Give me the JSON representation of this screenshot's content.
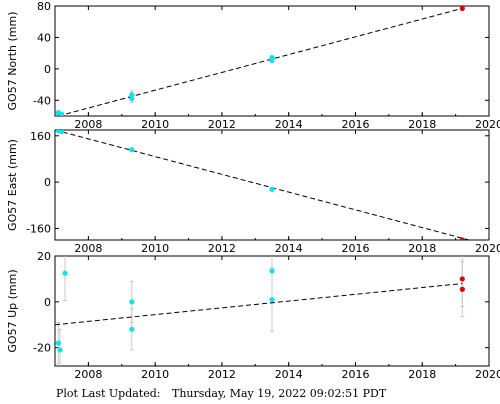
{
  "footer": {
    "label": "Plot Last Updated:",
    "timestamp": "Thursday, May 19, 2022 09:02:51 PDT"
  },
  "colors": {
    "point": "#00e5ee",
    "latest_point": "#e00000",
    "fit_line": "#000000",
    "error_bar": "#c8c8c8"
  },
  "chart_data": [
    {
      "type": "scatter",
      "id": "north",
      "ylabel": "GO57 North (mm)",
      "xlim": [
        2007,
        2020
      ],
      "ylim": [
        -60,
        80
      ],
      "xticks": [
        "2008",
        "2010",
        "2012",
        "2014",
        "2016",
        "2018",
        "2020"
      ],
      "yticks": [
        "-40",
        "0",
        "40",
        "80"
      ],
      "ytick_values": [
        -40,
        0,
        40,
        80
      ],
      "trend": [
        [
          2007.1,
          -60
        ],
        [
          2019.2,
          77
        ]
      ],
      "points": [
        {
          "x": 2007.1,
          "y": -56,
          "err": 3
        },
        {
          "x": 2007.2,
          "y": -58,
          "err": 3
        },
        {
          "x": 2009.3,
          "y": -33,
          "err": 5
        },
        {
          "x": 2009.3,
          "y": -38,
          "err": 5
        },
        {
          "x": 2013.5,
          "y": 14,
          "err": 3
        },
        {
          "x": 2013.5,
          "y": 11,
          "err": 3
        },
        {
          "x": 2019.2,
          "y": 77,
          "err": 2,
          "latest": true
        }
      ]
    },
    {
      "type": "scatter",
      "id": "east",
      "ylabel": "GO57 East (mm)",
      "xlim": [
        2007,
        2020
      ],
      "ylim": [
        -200,
        180
      ],
      "xticks": [
        "2008",
        "2010",
        "2012",
        "2014",
        "2016",
        "2018",
        "2020"
      ],
      "yticks": [
        "-160",
        "0",
        "160"
      ],
      "ytick_values": [
        -160,
        0,
        160
      ],
      "trend": [
        [
          2007,
          180
        ],
        [
          2019.4,
          -200
        ]
      ],
      "points": [
        {
          "x": 2007.1,
          "y": 178,
          "err": 3
        },
        {
          "x": 2007.2,
          "y": 175,
          "err": 3
        },
        {
          "x": 2009.3,
          "y": 112,
          "err": 4
        },
        {
          "x": 2013.5,
          "y": -25,
          "err": 3
        },
        {
          "x": 2019.2,
          "y": -200,
          "err": 3,
          "latest": true
        }
      ]
    },
    {
      "type": "scatter",
      "id": "up",
      "ylabel": "GO57 Up (mm)",
      "xlim": [
        2007,
        2020
      ],
      "ylim": [
        -28,
        20
      ],
      "xticks": [
        "2008",
        "2010",
        "2012",
        "2014",
        "2016",
        "2018",
        "2020"
      ],
      "yticks": [
        "-20",
        "0",
        "20"
      ],
      "ytick_values": [
        -20,
        0,
        20
      ],
      "trend": [
        [
          2007,
          -10
        ],
        [
          2019.2,
          8
        ]
      ],
      "points": [
        {
          "x": 2007.1,
          "y": -18,
          "err": 9
        },
        {
          "x": 2007.15,
          "y": -21,
          "err": 9
        },
        {
          "x": 2007.3,
          "y": 12.5,
          "err": 12
        },
        {
          "x": 2009.3,
          "y": 0,
          "err": 9
        },
        {
          "x": 2009.3,
          "y": -12,
          "err": 9
        },
        {
          "x": 2013.5,
          "y": 13.5,
          "err": 14
        },
        {
          "x": 2013.5,
          "y": 1,
          "err": 14
        },
        {
          "x": 2019.2,
          "y": 10,
          "err": 12,
          "latest": true
        },
        {
          "x": 2019.2,
          "y": 5.5,
          "err": 12,
          "latest": true
        }
      ]
    }
  ]
}
